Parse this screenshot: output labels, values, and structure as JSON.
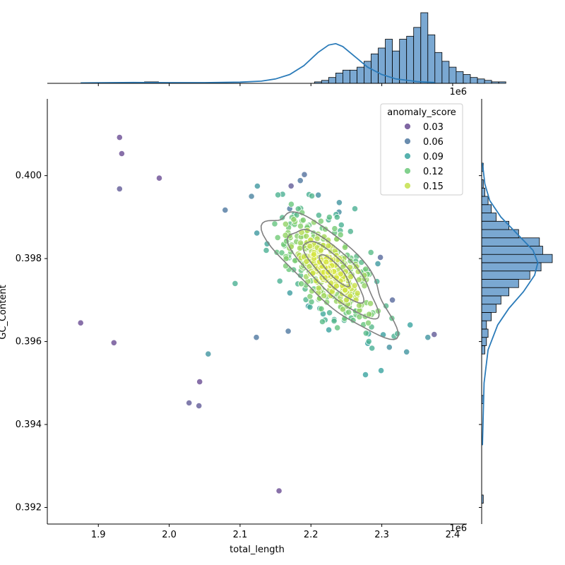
{
  "chart_data": {
    "type": "scatter",
    "xlabel": "total_length",
    "ylabel": "GC_Content",
    "x_offset_label": "1e6",
    "top_offset_label": "1e6",
    "x_ticks": [
      1.9,
      2.0,
      2.1,
      2.2,
      2.3,
      2.4
    ],
    "x_tick_labels": [
      "1.9",
      "2.0",
      "2.1",
      "2.2",
      "2.3",
      "2.4"
    ],
    "y_ticks": [
      0.392,
      0.394,
      0.396,
      0.398,
      0.4
    ],
    "y_tick_labels": [
      "0.392",
      "0.394",
      "0.396",
      "0.398",
      "0.400"
    ],
    "xlim": [
      1.828,
      2.42
    ],
    "ylim": [
      0.3916,
      0.40185
    ],
    "legend": {
      "title": "anomaly_score",
      "placement": "top-right",
      "entries": [
        {
          "label": "0.03",
          "color": "#6a4c93"
        },
        {
          "label": "0.06",
          "color": "#4f78a0"
        },
        {
          "label": "0.09",
          "color": "#3aa4a0"
        },
        {
          "label": "0.12",
          "color": "#6cc97a"
        },
        {
          "label": "0.15",
          "color": "#c4e04c"
        }
      ]
    },
    "colors": {
      "hist_fill": "#7aa8d2",
      "hist_line": "#2b7bb9",
      "kde_contour": "#808080"
    },
    "outlier_points": [
      {
        "x": 1.93,
        "y": 0.40092,
        "score": 0.01
      },
      {
        "x": 1.933,
        "y": 0.40053,
        "score": 0.01
      },
      {
        "x": 1.986,
        "y": 0.39994,
        "score": 0.01
      },
      {
        "x": 1.93,
        "y": 0.39968,
        "score": 0.04
      },
      {
        "x": 1.875,
        "y": 0.39645,
        "score": 0.01
      },
      {
        "x": 1.922,
        "y": 0.39597,
        "score": 0.01
      },
      {
        "x": 2.043,
        "y": 0.39503,
        "score": 0.01
      },
      {
        "x": 2.028,
        "y": 0.39452,
        "score": 0.04
      },
      {
        "x": 2.042,
        "y": 0.39445,
        "score": 0.04
      },
      {
        "x": 2.055,
        "y": 0.3957,
        "score": 0.08
      },
      {
        "x": 2.155,
        "y": 0.3924,
        "score": 0.03
      },
      {
        "x": 2.123,
        "y": 0.3961,
        "score": 0.06
      },
      {
        "x": 2.079,
        "y": 0.39917,
        "score": 0.06
      },
      {
        "x": 2.172,
        "y": 0.39975,
        "score": 0.04
      },
      {
        "x": 2.374,
        "y": 0.39617,
        "score": 0.04
      },
      {
        "x": 2.365,
        "y": 0.3961,
        "score": 0.08
      },
      {
        "x": 2.335,
        "y": 0.39575,
        "score": 0.08
      },
      {
        "x": 2.299,
        "y": 0.3953,
        "score": 0.09
      },
      {
        "x": 2.277,
        "y": 0.3952,
        "score": 0.09
      },
      {
        "x": 2.298,
        "y": 0.39803,
        "score": 0.05
      },
      {
        "x": 2.315,
        "y": 0.397,
        "score": 0.05
      },
      {
        "x": 2.168,
        "y": 0.39625,
        "score": 0.06
      },
      {
        "x": 2.093,
        "y": 0.3974,
        "score": 0.1
      },
      {
        "x": 2.16,
        "y": 0.39955,
        "score": 0.1
      },
      {
        "x": 2.185,
        "y": 0.39988,
        "score": 0.06
      },
      {
        "x": 2.17,
        "y": 0.3992,
        "score": 0.06
      },
      {
        "x": 2.34,
        "y": 0.3964,
        "score": 0.09
      },
      {
        "x": 2.262,
        "y": 0.3992,
        "score": 0.1
      },
      {
        "x": 2.24,
        "y": 0.39935,
        "score": 0.08
      }
    ],
    "cluster": {
      "count": 440,
      "center_x": 2.225,
      "center_y": 0.39775,
      "sd_x": 0.035,
      "sd_y": 0.00068,
      "corr": -0.62
    },
    "top_histogram": {
      "bin_start": 1.875,
      "bin_width": 0.01,
      "counts": [
        0,
        0,
        0,
        0,
        0,
        0,
        0,
        0,
        0,
        1,
        1,
        0,
        0,
        0,
        0,
        0,
        0,
        0,
        0,
        0,
        0,
        0,
        0,
        0,
        0,
        0,
        0,
        0,
        0,
        0,
        0,
        0,
        0,
        1,
        2,
        4,
        7,
        9,
        9,
        11,
        15,
        20,
        24,
        30,
        22,
        30,
        32,
        38,
        48,
        33,
        21,
        15,
        11,
        8,
        6,
        4,
        3,
        2,
        1,
        1
      ],
      "kde": [
        [
          1.875,
          0.3
        ],
        [
          1.95,
          0.6
        ],
        [
          2.0,
          0.5
        ],
        [
          2.05,
          0.5
        ],
        [
          2.1,
          0.8
        ],
        [
          2.13,
          1.5
        ],
        [
          2.15,
          3
        ],
        [
          2.17,
          6
        ],
        [
          2.19,
          12
        ],
        [
          2.21,
          21
        ],
        [
          2.225,
          26
        ],
        [
          2.235,
          27
        ],
        [
          2.245,
          25
        ],
        [
          2.26,
          19
        ],
        [
          2.28,
          11
        ],
        [
          2.3,
          6
        ],
        [
          2.32,
          3
        ],
        [
          2.35,
          1.2
        ],
        [
          2.375,
          0.6
        ]
      ]
    },
    "right_histogram": {
      "bin_start": 0.3921,
      "bin_width": 0.0002,
      "counts": [
        1,
        0,
        0,
        0,
        0,
        0,
        0,
        0,
        0,
        0,
        0,
        0,
        1,
        0,
        0,
        0,
        0,
        0,
        2,
        3,
        4,
        3,
        6,
        9,
        12,
        17,
        23,
        30,
        37,
        44,
        38,
        36,
        23,
        17,
        9,
        6,
        4,
        2,
        1,
        0,
        1,
        0
      ],
      "kde": [
        [
          0.3935,
          0.5
        ],
        [
          0.395,
          1.5
        ],
        [
          0.3958,
          4
        ],
        [
          0.3964,
          10
        ],
        [
          0.3968,
          17
        ],
        [
          0.3972,
          26
        ],
        [
          0.3976,
          33
        ],
        [
          0.3979,
          35
        ],
        [
          0.3982,
          32
        ],
        [
          0.3986,
          22
        ],
        [
          0.399,
          12
        ],
        [
          0.3994,
          5
        ],
        [
          0.3998,
          2
        ],
        [
          0.4003,
          0.5
        ]
      ]
    },
    "contours": [
      {
        "cx": 2.228,
        "cy": 0.3977,
        "rmaj": 118,
        "rmin": 40,
        "angle": 44,
        "wobble": 0.1
      },
      {
        "cx": 2.232,
        "cy": 0.39768,
        "rmaj": 84,
        "rmin": 27,
        "angle": 45,
        "wobble": 0.06
      },
      {
        "cx": 2.232,
        "cy": 0.3977,
        "rmaj": 58,
        "rmin": 17,
        "angle": 46,
        "wobble": 0.04
      },
      {
        "cx": 2.233,
        "cy": 0.39772,
        "rmaj": 30,
        "rmin": 8,
        "angle": 47,
        "wobble": 0.03
      }
    ]
  }
}
